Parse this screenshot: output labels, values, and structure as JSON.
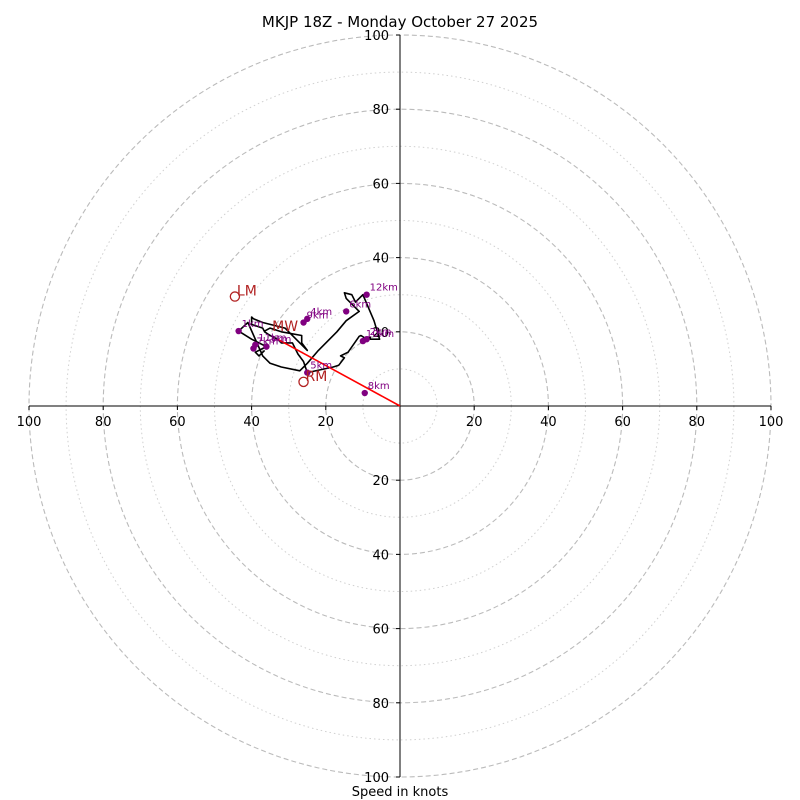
{
  "chart_data": {
    "type": "hodograph",
    "title": "MKJP 18Z - Monday October 27 2025",
    "xlabel": "Speed in knots",
    "ylabel": "",
    "xlim": [
      -100,
      100
    ],
    "ylim": [
      -100,
      100
    ],
    "dashed_rings": [
      20,
      40,
      60,
      80,
      100
    ],
    "dotted_rings": [
      10,
      30,
      50,
      70,
      90
    ],
    "x_tick_labels": [
      "100",
      "80",
      "60",
      "40",
      "20",
      "20",
      "40",
      "60",
      "80",
      "100"
    ],
    "x_tick_values": [
      -100,
      -80,
      -60,
      -40,
      -20,
      20,
      40,
      60,
      80,
      100
    ],
    "y_tick_labels": [
      "100",
      "80",
      "60",
      "40",
      "20",
      "20",
      "40",
      "60",
      "80",
      "100"
    ],
    "y_tick_values": [
      100,
      80,
      60,
      40,
      20,
      -20,
      -40,
      -60,
      -80,
      -100
    ],
    "series": [
      {
        "name": "wind profile",
        "color": "#000000",
        "u": [
          -36.5,
          -38,
          -39,
          -36,
          -40,
          -43.5,
          -41,
          -37,
          -35,
          -32,
          -27,
          -25,
          -22,
          -17,
          -14.5,
          -11,
          -14.5,
          -15,
          -13,
          -12,
          -10,
          -7,
          -5.5,
          -8,
          -8,
          -9,
          -10.5,
          -11,
          -14,
          -16,
          -15,
          -16.5,
          -18,
          -25,
          -26,
          -27.5,
          -29,
          -32,
          -33,
          -35,
          -36.5,
          -37,
          -40,
          -40,
          -39.5,
          -37,
          -31,
          -25,
          -26.5,
          -26.5,
          -32,
          -35,
          -36.5
        ],
        "v": [
          15,
          13.5,
          14.5,
          16,
          18,
          20.2,
          22.5,
          13.5,
          11.5,
          10.5,
          9.5,
          11.5,
          15,
          20,
          23,
          25.5,
          29,
          30.5,
          30,
          28,
          30,
          23,
          18,
          18,
          18.5,
          18,
          19,
          18.8,
          14.5,
          13.5,
          13,
          11,
          10.5,
          9,
          12,
          14,
          17,
          17,
          18,
          19,
          20,
          21,
          22,
          24,
          23.5,
          22.5,
          21,
          15,
          17,
          19,
          20,
          21,
          20.2
        ]
      }
    ],
    "markers": [
      {
        "label": "1km",
        "u": -43.5,
        "v": 20.2
      },
      {
        "label": "2km",
        "u": -9,
        "v": 18
      },
      {
        "label": "3km",
        "u": -36,
        "v": 16
      },
      {
        "label": "4km",
        "u": -25,
        "v": 23.5
      },
      {
        "label": "5km",
        "u": -25,
        "v": 9
      },
      {
        "label": "6km",
        "u": -14.5,
        "v": 25.5
      },
      {
        "label": "7km",
        "u": -39.5,
        "v": 15.5
      },
      {
        "label": "8km",
        "u": -9.5,
        "v": 3.5
      },
      {
        "label": "9km",
        "u": -26,
        "v": 22.5
      },
      {
        "label": "10km",
        "u": -10,
        "v": 17.5
      },
      {
        "label": "11km",
        "u": -39,
        "v": 16.5
      },
      {
        "label": "12km",
        "u": -9,
        "v": 30
      }
    ],
    "storm_motions": [
      {
        "label": "LM",
        "u": -44.5,
        "v": 29.5,
        "marker": "open-circle"
      },
      {
        "label": "RM",
        "u": -26,
        "v": 6.5,
        "marker": "open-circle"
      },
      {
        "label": "MW",
        "u": -35,
        "v": 20,
        "marker": "none"
      }
    ],
    "shear_vector": {
      "from_u": 0,
      "from_v": 0,
      "to_u": -33,
      "to_v": 18
    },
    "colors": {
      "ring": "#bbbbbb",
      "ring_dotted": "#d0d0d0",
      "axis": "#000000",
      "profile": "#000000",
      "marker": "#800080",
      "storm_motion": "#b22222",
      "shear_vector": "#ff0000"
    }
  }
}
